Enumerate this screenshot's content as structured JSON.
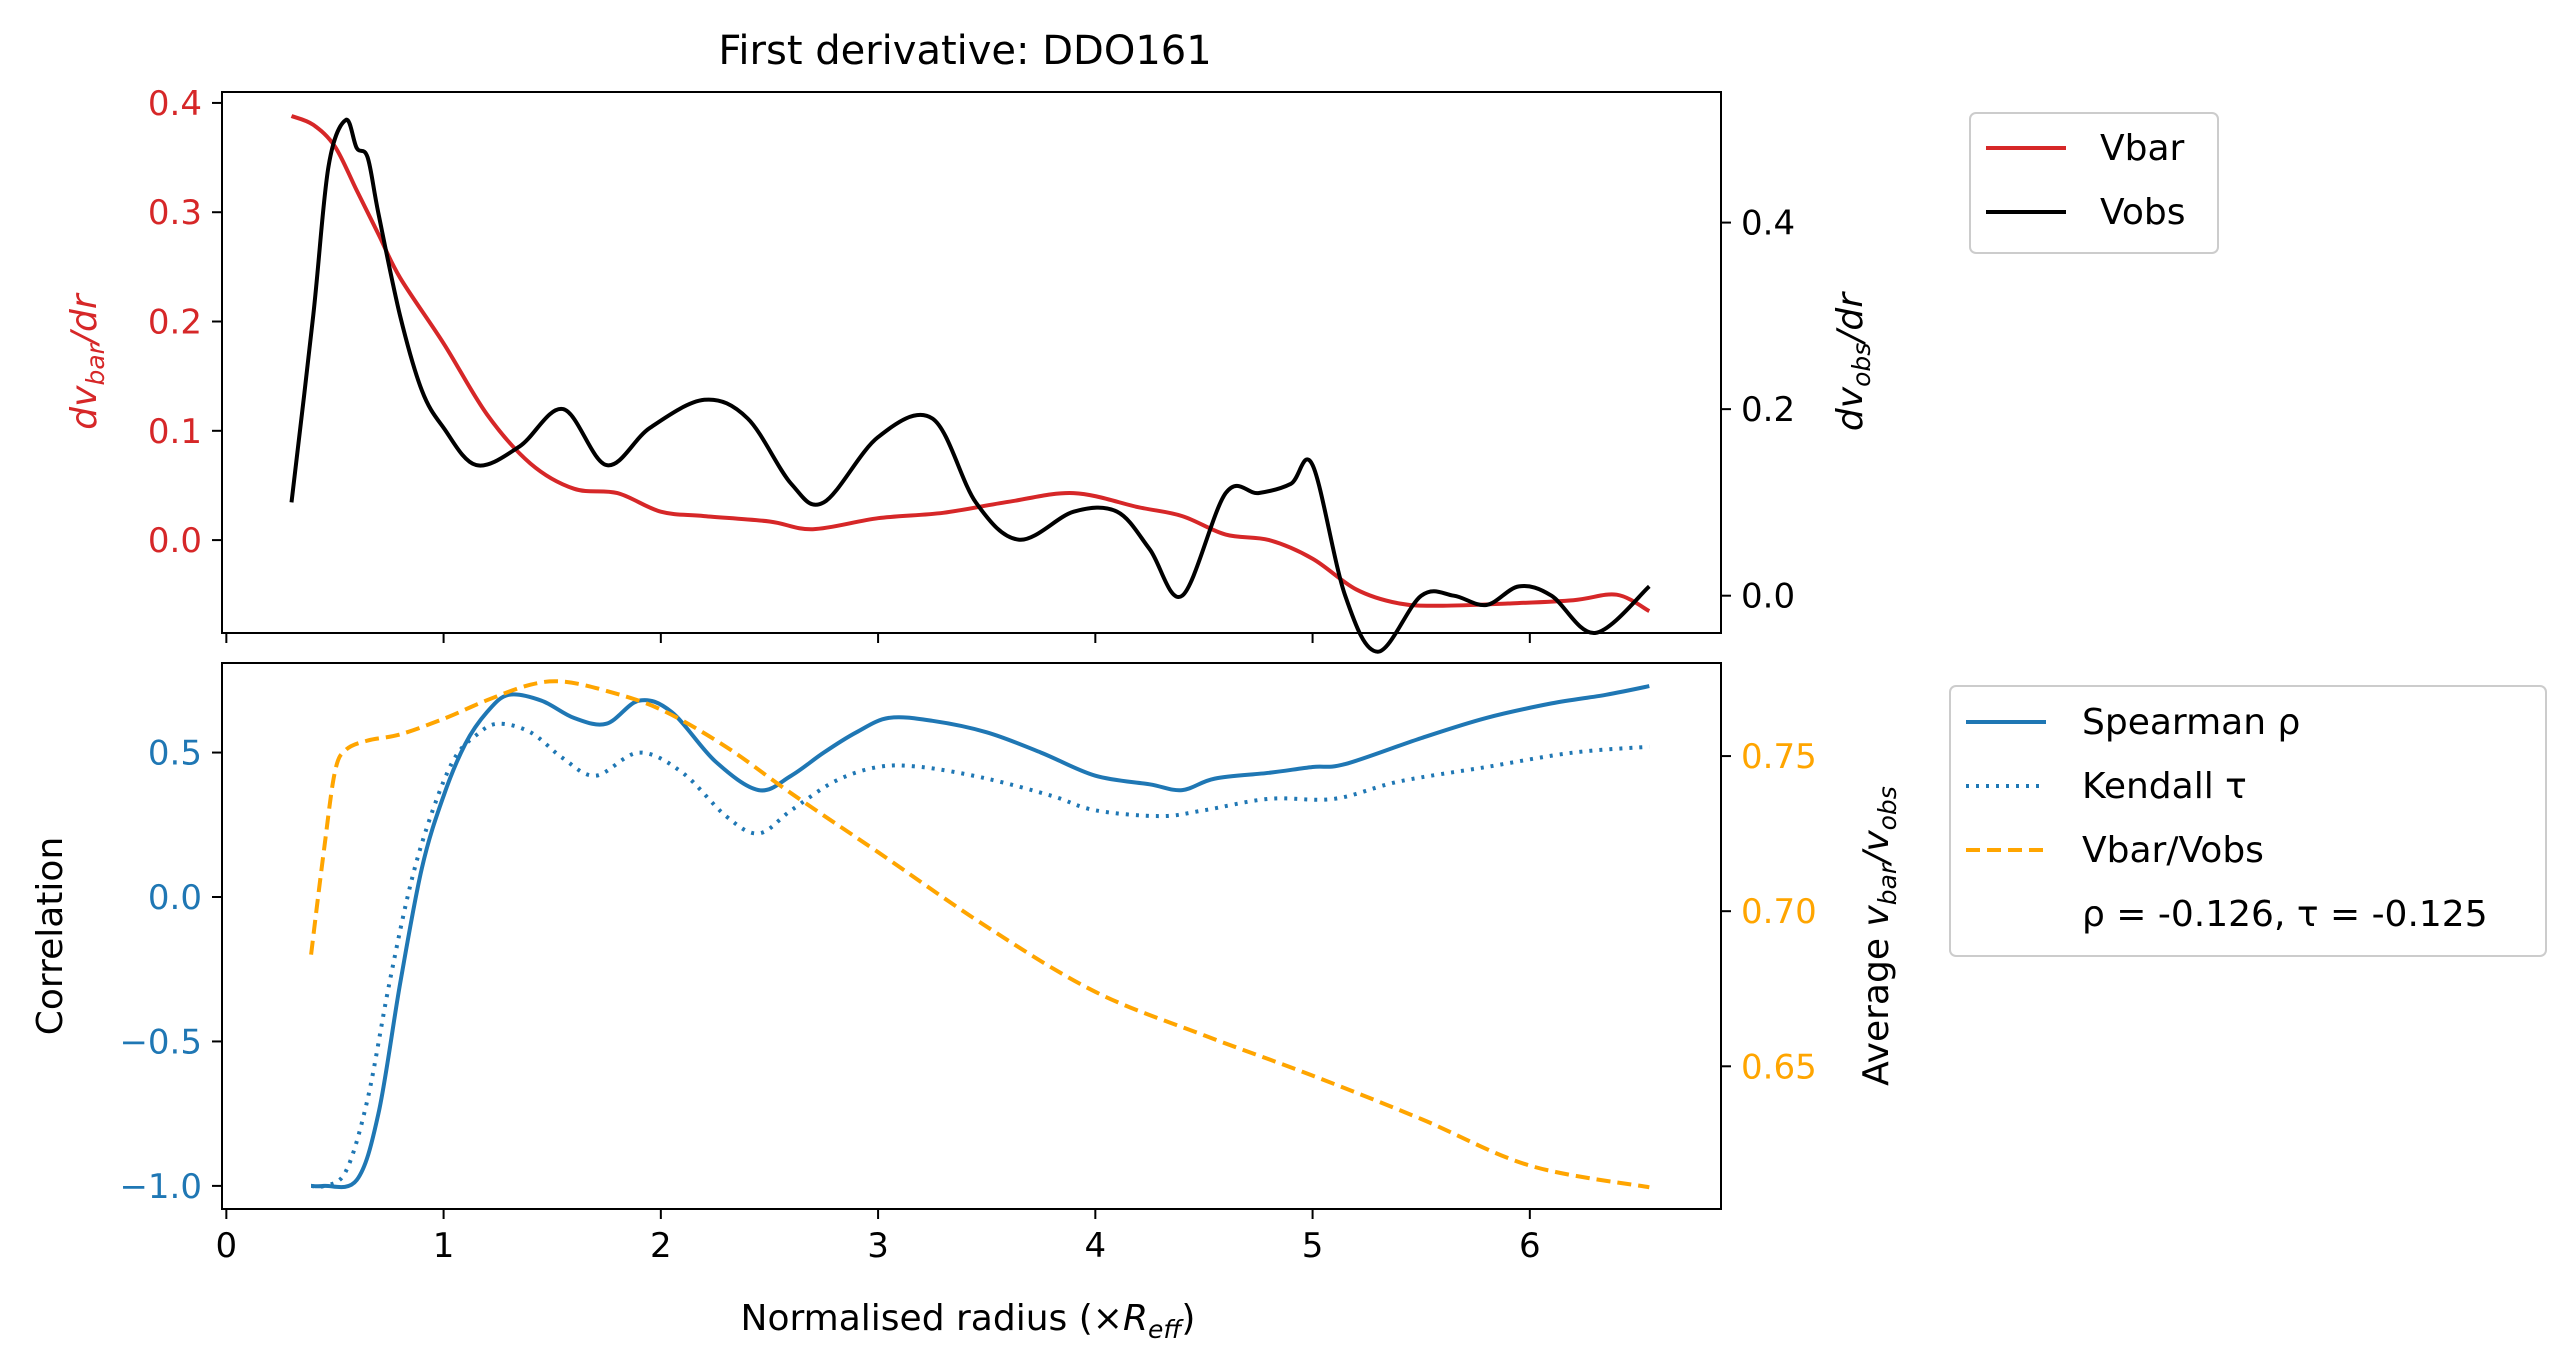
{
  "chart_data": [
    {
      "type": "line",
      "title": "First derivative: DDO161",
      "ylabel": "dv_bar/dr",
      "ylabel_right": "dv_obs/dr",
      "xlim": [
        -0.02,
        6.88
      ],
      "ylim": [
        -0.085,
        0.41
      ],
      "ylim_right": [
        -0.04,
        0.54
      ],
      "yticks": [
        "0.4",
        "0.3",
        "0.2",
        "0.1",
        "0.0"
      ],
      "yticks_values": [
        0.4,
        0.3,
        0.2,
        0.1,
        0.0
      ],
      "yticks_right": [
        "0.4",
        "0.2",
        "0.0"
      ],
      "yticks_right_values": [
        0.4,
        0.2,
        0.0
      ],
      "xticks_values": [
        0,
        1,
        2,
        3,
        4,
        5,
        6
      ],
      "grid": false,
      "legend_position": "outside-right",
      "colors": {
        "vbar": "#d62728",
        "vobs": "#000000",
        "left_axis": "#d62728",
        "right_axis": "#000000"
      },
      "series": [
        {
          "name": "Vbar",
          "axis": "left",
          "color": "#d62728",
          "x": [
            0.3,
            0.4,
            0.5,
            0.6,
            0.7,
            0.8,
            1.0,
            1.2,
            1.4,
            1.6,
            1.8,
            2.0,
            2.2,
            2.5,
            2.7,
            3.0,
            3.3,
            3.6,
            3.9,
            4.2,
            4.4,
            4.6,
            4.8,
            5.0,
            5.2,
            5.4,
            5.6,
            5.9,
            6.2,
            6.4,
            6.55
          ],
          "y": [
            0.388,
            0.38,
            0.36,
            0.32,
            0.28,
            0.24,
            0.18,
            0.115,
            0.07,
            0.047,
            0.043,
            0.026,
            0.022,
            0.017,
            0.01,
            0.02,
            0.025,
            0.035,
            0.043,
            0.03,
            0.022,
            0.005,
            0.0,
            -0.017,
            -0.045,
            -0.058,
            -0.06,
            -0.058,
            -0.055,
            -0.05,
            -0.065
          ]
        },
        {
          "name": "Vobs",
          "axis": "right",
          "color": "#000000",
          "x": [
            0.3,
            0.4,
            0.47,
            0.55,
            0.6,
            0.65,
            0.7,
            0.8,
            0.9,
            1.0,
            1.15,
            1.35,
            1.55,
            1.75,
            1.95,
            2.2,
            2.4,
            2.6,
            2.75,
            3.0,
            3.25,
            3.45,
            3.65,
            3.9,
            4.1,
            4.25,
            4.4,
            4.6,
            4.75,
            4.9,
            5.0,
            5.15,
            5.3,
            5.5,
            5.65,
            5.8,
            5.95,
            6.1,
            6.3,
            6.55
          ],
          "y": [
            0.1,
            0.3,
            0.46,
            0.51,
            0.48,
            0.47,
            0.41,
            0.3,
            0.22,
            0.18,
            0.14,
            0.16,
            0.2,
            0.14,
            0.18,
            0.21,
            0.19,
            0.12,
            0.1,
            0.17,
            0.19,
            0.1,
            0.06,
            0.09,
            0.09,
            0.05,
            0.0,
            0.11,
            0.11,
            0.12,
            0.14,
            0.0,
            -0.06,
            0.0,
            0.0,
            -0.01,
            0.01,
            0.0,
            -0.04,
            0.01
          ]
        }
      ]
    },
    {
      "type": "line",
      "xlabel": "Normalised radius (×R_eff)",
      "ylabel": "Correlation",
      "ylabel_right": "Average v_bar/v_obs",
      "xlim": [
        -0.02,
        6.88
      ],
      "xticks": [
        "0",
        "1",
        "2",
        "3",
        "4",
        "5",
        "6"
      ],
      "xticks_values": [
        0,
        1,
        2,
        3,
        4,
        5,
        6
      ],
      "ylim": [
        -1.08,
        0.81
      ],
      "ylim_right": [
        0.604,
        0.78
      ],
      "yticks": [
        "0.5",
        "0.0",
        "−0.5",
        "−1.0"
      ],
      "yticks_values": [
        0.5,
        0.0,
        -0.5,
        -1.0
      ],
      "yticks_right": [
        "0.75",
        "0.70",
        "0.65"
      ],
      "yticks_right_values": [
        0.75,
        0.7,
        0.65
      ],
      "grid": false,
      "legend_position": "outside-right",
      "colors": {
        "spearman": "#1f77b4",
        "kendall": "#1f77b4",
        "ratio": "#ffa500",
        "left_axis": "#1f77b4",
        "right_axis": "#ffa500"
      },
      "series": [
        {
          "name": "Spearman ρ",
          "axis": "left",
          "style": "solid",
          "color": "#1f77b4",
          "x": [
            0.39,
            0.45,
            0.6,
            0.7,
            0.8,
            0.9,
            1.0,
            1.1,
            1.2,
            1.3,
            1.45,
            1.6,
            1.75,
            1.9,
            2.05,
            2.25,
            2.45,
            2.6,
            2.75,
            2.9,
            3.05,
            3.25,
            3.5,
            3.75,
            4.0,
            4.25,
            4.4,
            4.55,
            4.8,
            5.0,
            5.15,
            5.5,
            5.8,
            6.1,
            6.35,
            6.55
          ],
          "y": [
            -1.0,
            -1.0,
            -0.98,
            -0.75,
            -0.3,
            0.1,
            0.35,
            0.53,
            0.64,
            0.7,
            0.68,
            0.62,
            0.6,
            0.68,
            0.64,
            0.47,
            0.37,
            0.42,
            0.5,
            0.57,
            0.62,
            0.61,
            0.57,
            0.5,
            0.42,
            0.39,
            0.37,
            0.41,
            0.43,
            0.45,
            0.46,
            0.55,
            0.62,
            0.67,
            0.7,
            0.73
          ]
        },
        {
          "name": "Kendall τ",
          "axis": "left",
          "style": "dotted",
          "color": "#1f77b4",
          "x": [
            0.39,
            0.45,
            0.55,
            0.65,
            0.75,
            0.85,
            0.95,
            1.05,
            1.15,
            1.25,
            1.4,
            1.55,
            1.7,
            1.9,
            2.1,
            2.3,
            2.45,
            2.6,
            2.8,
            3.0,
            3.2,
            3.5,
            3.8,
            4.0,
            4.3,
            4.5,
            4.8,
            5.1,
            5.4,
            5.8,
            6.2,
            6.55
          ],
          "y": [
            -1.0,
            -1.0,
            -0.95,
            -0.7,
            -0.3,
            0.05,
            0.3,
            0.48,
            0.56,
            0.6,
            0.57,
            0.48,
            0.42,
            0.5,
            0.43,
            0.28,
            0.22,
            0.3,
            0.4,
            0.45,
            0.45,
            0.41,
            0.35,
            0.3,
            0.28,
            0.3,
            0.34,
            0.34,
            0.4,
            0.45,
            0.5,
            0.52
          ]
        },
        {
          "name": "Vbar/Vobs",
          "axis": "right",
          "style": "dashed",
          "color": "#ffa500",
          "x": [
            0.39,
            0.45,
            0.5,
            0.55,
            0.65,
            0.8,
            1.0,
            1.2,
            1.4,
            1.55,
            1.75,
            2.0,
            2.3,
            2.6,
            3.0,
            3.5,
            4.0,
            4.5,
            5.0,
            5.5,
            6.0,
            6.55
          ],
          "y": [
            0.686,
            0.72,
            0.745,
            0.752,
            0.755,
            0.757,
            0.762,
            0.768,
            0.773,
            0.774,
            0.771,
            0.765,
            0.753,
            0.738,
            0.719,
            0.695,
            0.674,
            0.66,
            0.647,
            0.633,
            0.618,
            0.611
          ]
        }
      ],
      "annotation": "ρ = -0.126, τ = -0.125"
    }
  ]
}
